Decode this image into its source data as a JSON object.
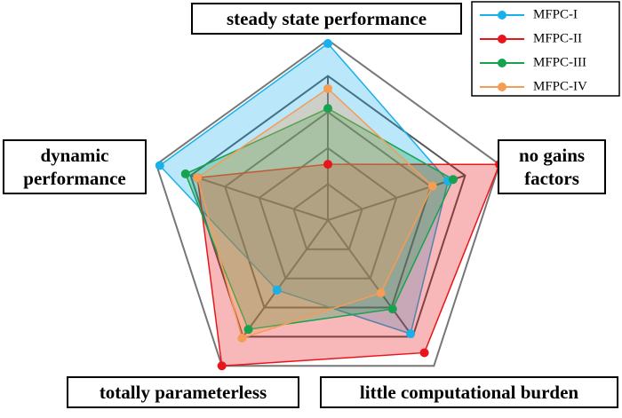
{
  "chart_data": {
    "type": "radar",
    "categories": [
      "steady state performance",
      "no gains factors",
      "little computational burden",
      "totally parameterless",
      "dynamic performance"
    ],
    "rlim": [
      0,
      1
    ],
    "series": [
      {
        "name": "MFPC-I",
        "color": "#1ab0ea",
        "values": [
          0.98,
          0.7,
          0.78,
          0.48,
          0.98
        ]
      },
      {
        "name": "MFPC-II",
        "color": "#e8151b",
        "values": [
          0.31,
          1.0,
          0.91,
          1.0,
          0.76
        ]
      },
      {
        "name": "MFPC-III",
        "color": "#17a24f",
        "values": [
          0.62,
          0.73,
          0.61,
          0.75,
          0.83
        ]
      },
      {
        "name": "MFPC-IV",
        "color": "#f59c55",
        "values": [
          0.73,
          0.61,
          0.5,
          0.81,
          0.76
        ]
      }
    ]
  }
}
